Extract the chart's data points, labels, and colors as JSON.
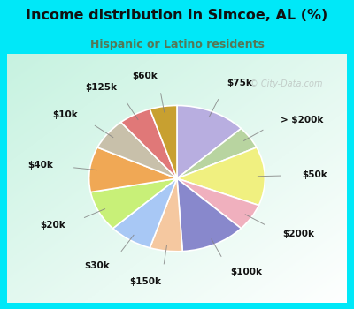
{
  "title": "Income distribution in Simcoe, AL (%)",
  "subtitle": "Hispanic or Latino residents",
  "watermark": "© City-Data.com",
  "labels": [
    "$75k",
    "> $200k",
    "$50k",
    "$200k",
    "$100k",
    "$150k",
    "$30k",
    "$20k",
    "$40k",
    "$10k",
    "$125k",
    "$60k"
  ],
  "values": [
    13,
    5,
    13,
    6,
    12,
    6,
    8,
    9,
    10,
    7,
    6,
    5
  ],
  "colors": [
    "#b8aee0",
    "#b8d4a0",
    "#f0f080",
    "#f0b0be",
    "#8888cc",
    "#f5c8a0",
    "#a8c8f5",
    "#c8f078",
    "#f0a855",
    "#c8c0aa",
    "#e07878",
    "#c8a030"
  ],
  "bg_cyan": "#00e8f8",
  "title_color": "#111111",
  "subtitle_color": "#557755",
  "label_color": "#111111",
  "startangle": 90,
  "figsize": [
    4.0,
    3.5
  ],
  "dpi": 100
}
